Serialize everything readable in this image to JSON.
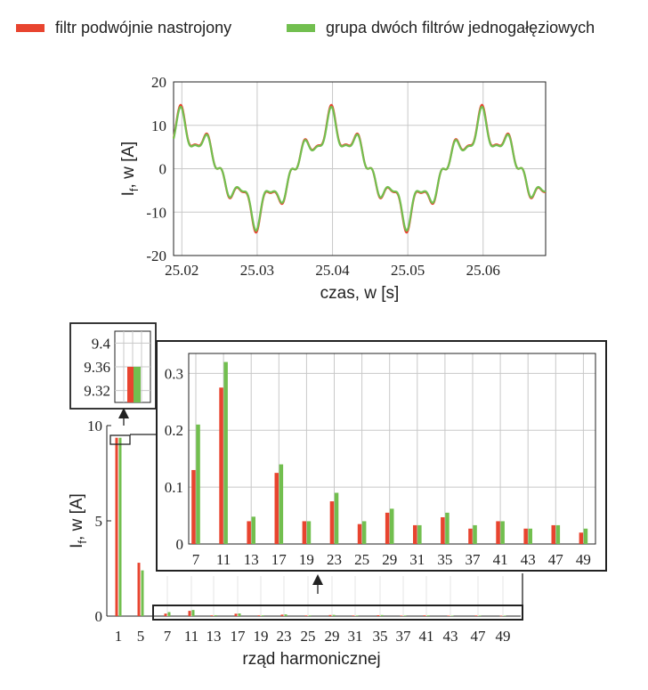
{
  "legend": {
    "items": [
      {
        "label": "filtr podwójnie nastrojony",
        "color": "#e8442f"
      },
      {
        "label": "grupa dwóch filtrów jednogałęziowych",
        "color": "#72bf4f"
      }
    ]
  },
  "colors": {
    "red": "#e8442f",
    "green": "#72bf4f",
    "grid": "#c8c8c8",
    "axis": "#222222"
  },
  "chart_data": [
    {
      "type": "line",
      "xlabel": "czas, w [s]",
      "ylabel": "I",
      "ylabel_sub": "f",
      "ylabel_rest": ", w [A]",
      "xlim": [
        25.0189,
        25.0683
      ],
      "ylim": [
        -20,
        20
      ],
      "xticks": [
        "25.02",
        "25.03",
        "25.04",
        "25.05",
        "25.06"
      ],
      "xtick_values": [
        25.02,
        25.03,
        25.04,
        25.05,
        25.06
      ],
      "yticks": [
        "20",
        "10",
        "0",
        "-10",
        "-20"
      ],
      "ytick_values": [
        20,
        10,
        0,
        -10,
        -20
      ],
      "grid": true,
      "period_s": 0.02,
      "series": [
        {
          "name": "filtr podwójnie nastrojony",
          "harmonics": [
            [
              1,
              9.36,
              0
            ],
            [
              5,
              2.7,
              0.35
            ],
            [
              7,
              1.6,
              0.3
            ],
            [
              11,
              1.3,
              0.5
            ]
          ],
          "scale": 1.0
        },
        {
          "name": "grupa dwóch filtrów jednogałęziowych",
          "harmonics": [
            [
              1,
              9.36,
              0
            ],
            [
              5,
              2.7,
              0.35
            ],
            [
              7,
              1.6,
              0.3
            ],
            [
              11,
              1.3,
              0.5
            ]
          ],
          "scale": 0.97
        }
      ]
    },
    {
      "type": "bar",
      "xlabel": "rząd harmonicznej",
      "ylabel": "I",
      "ylabel_sub": "f",
      "ylabel_rest": ", w [A]",
      "ylim": [
        0,
        10
      ],
      "yticks": [
        "10",
        "5",
        "0"
      ],
      "ytick_values": [
        10,
        5,
        0
      ],
      "categories": [
        "1",
        "5",
        "7",
        "11",
        "13",
        "17",
        "19",
        "23",
        "25",
        "29",
        "31",
        "35",
        "37",
        "41",
        "43",
        "47",
        "49"
      ],
      "series": [
        {
          "name": "filtr podwójnie nastrojony",
          "values": [
            9.36,
            2.8,
            0.13,
            0.275,
            0.04,
            0.125,
            0.04,
            0.075,
            0.035,
            0.055,
            0.033,
            0.047,
            0.027,
            0.04,
            0.027,
            0.033,
            0.02
          ]
        },
        {
          "name": "grupa dwóch filtrów jednogałęziowych",
          "values": [
            9.36,
            2.4,
            0.21,
            0.32,
            0.048,
            0.14,
            0.04,
            0.09,
            0.04,
            0.062,
            0.033,
            0.055,
            0.033,
            0.04,
            0.027,
            0.033,
            0.027
          ]
        }
      ]
    },
    {
      "type": "bar",
      "role": "inset",
      "ylim": [
        9.3,
        9.42
      ],
      "yticks": [
        "9.4",
        "9.36",
        "9.32"
      ],
      "ytick_values": [
        9.4,
        9.36,
        9.32
      ],
      "categories": [
        "1"
      ],
      "series": [
        {
          "name": "filtr podwójnie nastrojony",
          "values": [
            9.36
          ]
        },
        {
          "name": "grupa dwóch filtrów jednogałęziowych",
          "values": [
            9.36
          ]
        }
      ]
    },
    {
      "type": "bar",
      "role": "zoom",
      "ylim": [
        0,
        0.335
      ],
      "yticks": [
        "0.3",
        "0.2",
        "0.1",
        "0"
      ],
      "ytick_values": [
        0.3,
        0.2,
        0.1,
        0
      ],
      "categories": [
        "7",
        "11",
        "13",
        "17",
        "19",
        "23",
        "25",
        "29",
        "31",
        "35",
        "37",
        "41",
        "43",
        "47",
        "49"
      ],
      "series": [
        {
          "name": "filtr podwójnie nastrojony",
          "values": [
            0.13,
            0.275,
            0.04,
            0.125,
            0.04,
            0.075,
            0.035,
            0.055,
            0.033,
            0.047,
            0.027,
            0.04,
            0.027,
            0.033,
            0.02
          ]
        },
        {
          "name": "grupa dwóch filtrów jednogałęziowych",
          "values": [
            0.21,
            0.32,
            0.048,
            0.14,
            0.04,
            0.09,
            0.04,
            0.062,
            0.033,
            0.055,
            0.033,
            0.04,
            0.027,
            0.033,
            0.027
          ]
        }
      ]
    }
  ]
}
